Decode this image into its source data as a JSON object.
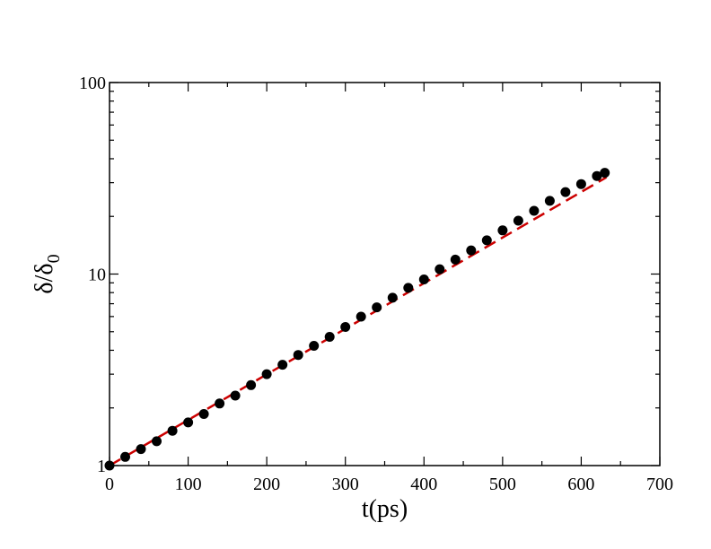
{
  "chart_data": {
    "type": "scatter",
    "title": "",
    "xlabel": "t(ps)",
    "ylabel_main": "δ/δ",
    "ylabel_sub": "0",
    "xlim": [
      0,
      700
    ],
    "ylim": [
      1,
      100
    ],
    "yscale": "log",
    "grid": false,
    "x_ticks": [
      0,
      100,
      200,
      300,
      400,
      500,
      600,
      700
    ],
    "x_tick_labels": [
      "0",
      "100",
      "200",
      "300",
      "400",
      "500",
      "600",
      "700"
    ],
    "y_ticks": [
      1,
      10,
      100
    ],
    "y_tick_labels": [
      "1",
      "10",
      "100"
    ],
    "series": [
      {
        "kind": "points",
        "color": "#000000",
        "x": [
          0,
          20,
          40,
          60,
          80,
          100,
          120,
          140,
          160,
          180,
          200,
          220,
          240,
          260,
          280,
          300,
          320,
          340,
          360,
          380,
          400,
          420,
          440,
          460,
          480,
          500,
          520,
          540,
          560,
          580,
          600,
          620,
          630
        ],
        "y": [
          1.0,
          1.11,
          1.22,
          1.34,
          1.52,
          1.68,
          1.86,
          2.11,
          2.32,
          2.63,
          3.0,
          3.36,
          3.78,
          4.22,
          4.7,
          5.29,
          5.99,
          6.7,
          7.52,
          8.47,
          9.37,
          10.6,
          11.9,
          13.3,
          15.0,
          16.9,
          19.0,
          21.4,
          24.1,
          26.8,
          29.5,
          32.5,
          33.8
        ]
      },
      {
        "kind": "fit-line",
        "color": "#cc0000",
        "x": [
          0,
          632
        ],
        "y": [
          1.0,
          32.0
        ]
      }
    ]
  }
}
